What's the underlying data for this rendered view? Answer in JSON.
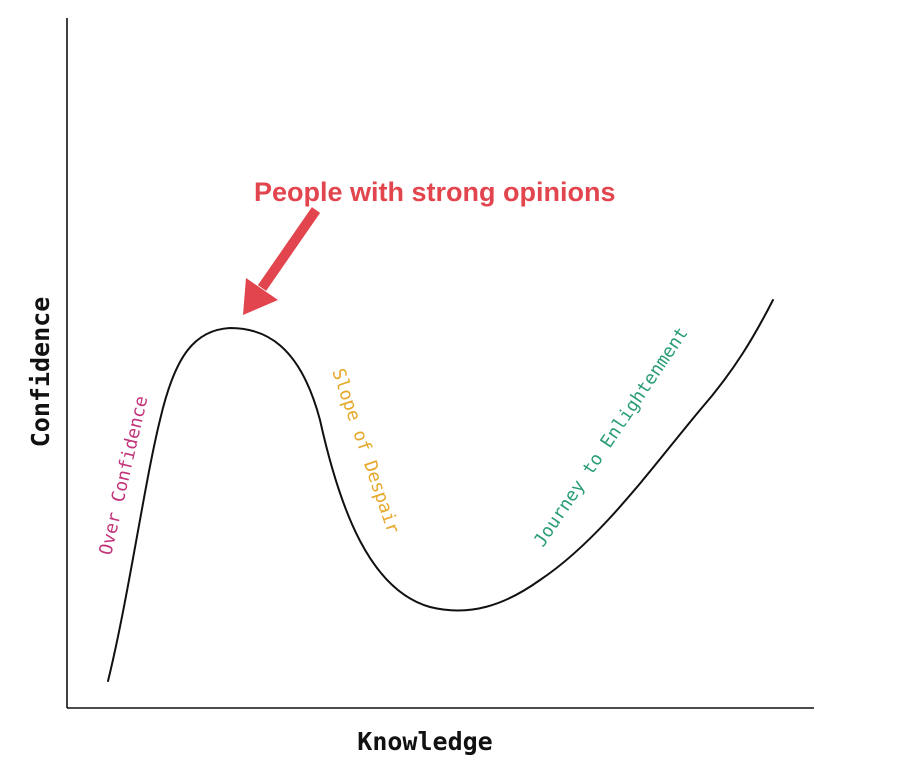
{
  "axes": {
    "x_label": "Knowledge",
    "y_label": "Confidence"
  },
  "callout": {
    "text": "People with strong opinions",
    "color": "#e2454d"
  },
  "phases": [
    {
      "label": "Over Confidence",
      "color": "#c2347a"
    },
    {
      "label": "Slope of Despair",
      "color": "#e5a82a"
    },
    {
      "label": "Journey to Enlightenment",
      "color": "#2a9d76"
    }
  ]
}
